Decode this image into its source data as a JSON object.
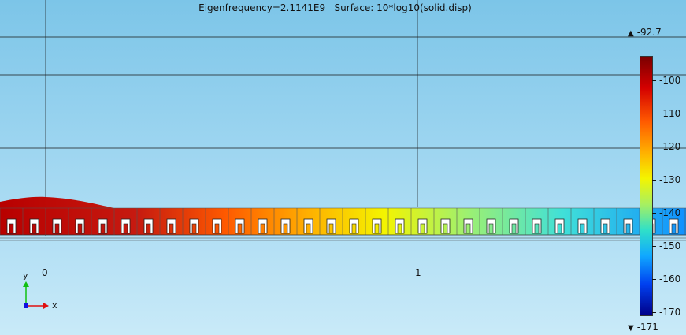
{
  "title": "Eigenfrequency=2.1141E9   Surface: 10*log10(solid.disp)",
  "axis": {
    "x_ticks": [
      "0",
      "1"
    ]
  },
  "colorbar": {
    "max": "-92.7",
    "min": "-171",
    "ticks": [
      "-100",
      "-110",
      "-120",
      "-130",
      "-140",
      "-150",
      "-160",
      "-170"
    ],
    "max_icon": "triangle-up-icon",
    "min_icon": "triangle-down-icon"
  },
  "triad": {
    "x_label": "x",
    "y_label": "y"
  },
  "colors": {
    "background_top": "#7cc5e8",
    "background_bottom": "#c9eaf8",
    "high": "#c00000",
    "mid": "#f4f400",
    "low": "#2080ff",
    "triad_x": "#e01010",
    "triad_y": "#10c010",
    "triad_origin": "#1010e0"
  }
}
